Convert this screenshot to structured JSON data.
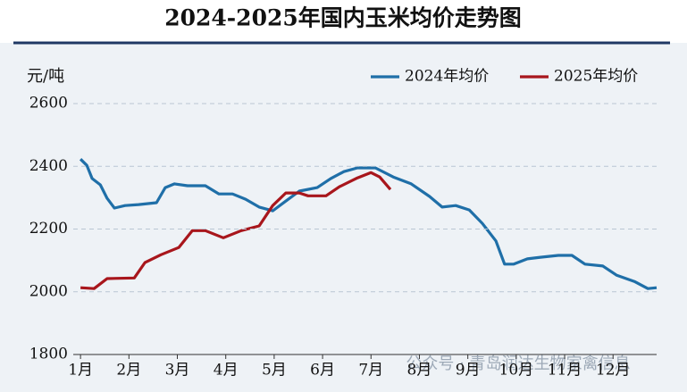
{
  "chart_data": {
    "type": "line",
    "title": "2024-2025年国内玉米均价走势图",
    "y_label": "元/吨",
    "watermark": "公众号 · 青岛润达生物家禽信息",
    "xlim": [
      0.85,
      12.9
    ],
    "xticks": [
      {
        "value": 1,
        "label": "1月"
      },
      {
        "value": 2,
        "label": "2月"
      },
      {
        "value": 3,
        "label": "3月"
      },
      {
        "value": 4,
        "label": "4月"
      },
      {
        "value": 5,
        "label": "5月"
      },
      {
        "value": 6,
        "label": "6月"
      },
      {
        "value": 7,
        "label": "7月"
      },
      {
        "value": 8,
        "label": "8月"
      },
      {
        "value": 9,
        "label": "9月"
      },
      {
        "value": 10,
        "label": "10月"
      },
      {
        "value": 11,
        "label": "11月"
      },
      {
        "value": 12,
        "label": "12月"
      }
    ],
    "ylim": [
      1800,
      2600
    ],
    "yticks": [
      1800,
      2000,
      2200,
      2400,
      2600
    ],
    "grid": true,
    "legend": "top-right",
    "series": [
      {
        "name": "2024年均价",
        "color": "#1f6fa8",
        "x": [
          1.0,
          1.13,
          1.24,
          1.41,
          1.55,
          1.7,
          1.92,
          2.2,
          2.57,
          2.75,
          2.94,
          3.21,
          3.58,
          3.86,
          4.14,
          4.41,
          4.69,
          4.97,
          5.24,
          5.52,
          5.89,
          6.17,
          6.44,
          6.72,
          7.09,
          7.46,
          7.83,
          8.21,
          8.47,
          8.75,
          9.03,
          9.3,
          9.58,
          9.76,
          9.95,
          10.23,
          10.5,
          10.87,
          11.15,
          11.42,
          11.79,
          12.07,
          12.44,
          12.72,
          12.9
        ],
        "values": [
          2423,
          2403,
          2361,
          2341,
          2298,
          2267,
          2275,
          2278,
          2284,
          2332,
          2344,
          2338,
          2338,
          2312,
          2312,
          2295,
          2270,
          2258,
          2289,
          2321,
          2332,
          2361,
          2383,
          2395,
          2395,
          2366,
          2344,
          2304,
          2270,
          2275,
          2261,
          2218,
          2162,
          2088,
          2088,
          2105,
          2110,
          2116,
          2116,
          2088,
          2082,
          2053,
          2033,
          2010,
          2013
        ]
      },
      {
        "name": "2025年均价",
        "color": "#a8161c",
        "x": [
          1.0,
          1.28,
          1.55,
          2.11,
          2.33,
          2.66,
          3.03,
          3.31,
          3.58,
          3.95,
          4.32,
          4.69,
          4.97,
          5.24,
          5.52,
          5.7,
          6.07,
          6.35,
          6.72,
          7.0,
          7.18,
          7.4
        ],
        "values": [
          2013,
          2010,
          2042,
          2044,
          2093,
          2118,
          2141,
          2195,
          2195,
          2172,
          2195,
          2210,
          2275,
          2315,
          2315,
          2306,
          2306,
          2335,
          2363,
          2380,
          2366,
          2326
        ]
      }
    ]
  }
}
